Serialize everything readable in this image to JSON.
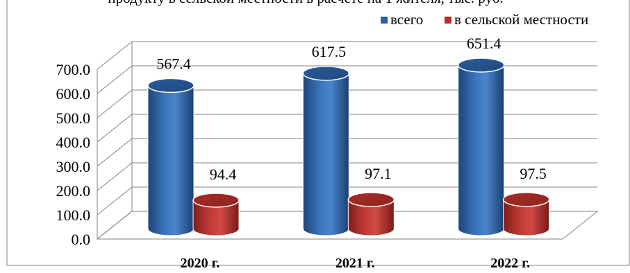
{
  "chart_data": {
    "type": "bar",
    "title_fragment": "продукту в сельской местности в расчете на 1 жителя, тыс. руб.",
    "categories": [
      "2020 г.",
      "2021 г.",
      "2022 г."
    ],
    "series": [
      {
        "name": "всего",
        "values": [
          567.4,
          617.5,
          651.4
        ],
        "color": "#2e5f9f"
      },
      {
        "name": "в сельской местности",
        "values": [
          94.4,
          97.1,
          97.5
        ],
        "color": "#b52f2b"
      }
    ],
    "value_labels": [
      [
        "567.4",
        "617.5",
        "651.4"
      ],
      [
        "94.4",
        "97.1",
        "97.5"
      ]
    ],
    "y_ticks": [
      "0.0",
      "100.0",
      "200.0",
      "300.0",
      "400.0",
      "500.0",
      "600.0",
      "700.0"
    ],
    "ylim": [
      0,
      700
    ],
    "grid": true,
    "style": "3d-cylinder",
    "legend_position": "top-right"
  }
}
